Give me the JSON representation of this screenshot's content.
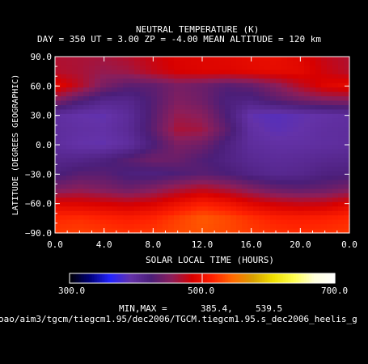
{
  "chart_data": {
    "type": "heatmap",
    "title": "NEUTRAL TEMPERATURE (K)",
    "subtitle": "DAY = 350   UT =   3.00   ZP =   -4.00   MEAN ALTITUDE = 120 km",
    "xlabel": "SOLAR LOCAL TIME (HOURS)",
    "ylabel": "LATITUDE (DEGREES GEOGRAPHIC)",
    "xlim": [
      0,
      24
    ],
    "ylim": [
      -90,
      90
    ],
    "x_ticks": [
      "0.0",
      "4.0",
      "8.0",
      "12.0",
      "16.0",
      "20.0",
      "0.0"
    ],
    "y_ticks": [
      "90.0",
      "60.0",
      "30.0",
      "0.0",
      "-30.0",
      "-60.0",
      "-90.0"
    ],
    "x": [
      0,
      2,
      4,
      6,
      8,
      10,
      12,
      14,
      16,
      18,
      20,
      22,
      24
    ],
    "y": [
      -90,
      -75,
      -60,
      -45,
      -30,
      -15,
      0,
      15,
      30,
      45,
      60,
      75,
      90
    ],
    "z": [
      [
        525,
        528,
        525,
        522,
        525,
        532,
        536,
        532,
        526,
        522,
        520,
        522,
        525
      ],
      [
        518,
        520,
        516,
        512,
        516,
        528,
        539,
        532,
        522,
        514,
        512,
        514,
        518
      ],
      [
        490,
        488,
        484,
        480,
        486,
        500,
        512,
        504,
        490,
        480,
        476,
        478,
        490
      ],
      [
        445,
        452,
        446,
        438,
        448,
        462,
        472,
        462,
        448,
        436,
        432,
        436,
        445
      ],
      [
        420,
        430,
        430,
        420,
        418,
        424,
        430,
        424,
        414,
        408,
        410,
        418,
        420
      ],
      [
        410,
        412,
        418,
        430,
        440,
        438,
        426,
        416,
        406,
        402,
        404,
        408,
        410
      ],
      [
        400,
        392,
        390,
        398,
        422,
        446,
        440,
        418,
        400,
        396,
        396,
        398,
        400
      ],
      [
        400,
        396,
        394,
        404,
        432,
        466,
        462,
        432,
        396,
        388,
        392,
        398,
        400
      ],
      [
        398,
        392,
        390,
        402,
        430,
        458,
        452,
        424,
        390,
        386,
        390,
        394,
        398
      ],
      [
        450,
        426,
        410,
        410,
        428,
        448,
        440,
        420,
        416,
        430,
        440,
        448,
        450
      ],
      [
        496,
        472,
        444,
        430,
        432,
        444,
        438,
        428,
        434,
        450,
        472,
        490,
        496
      ],
      [
        470,
        466,
        458,
        462,
        476,
        486,
        490,
        490,
        494,
        496,
        494,
        480,
        470
      ],
      [
        468,
        466,
        464,
        470,
        480,
        488,
        490,
        492,
        496,
        498,
        490,
        476,
        468
      ]
    ],
    "colorbar": {
      "min": 300,
      "max": 700,
      "tick_labels": [
        "300.0",
        "500.0",
        "700.0"
      ],
      "stops": [
        "#000000",
        "#00007a",
        "#2323ff",
        "#6432a8",
        "#4b1e78",
        "#8c1e5a",
        "#d70000",
        "#ff2000",
        "#ff6a00",
        "#d8a000",
        "#f0e000",
        "#ffff50",
        "#ffffdc",
        "#ffffff"
      ]
    },
    "minmax_label": "MIN,MAX =",
    "min_value": "385.4,",
    "max_value": "539.5",
    "grid": false,
    "legend": "none"
  },
  "footer": {
    "path": "oao/aim3/tgcm/tiegcm1.95/dec2006/TGCM.tiegcm1.95.s_dec2006_heelis_g"
  }
}
